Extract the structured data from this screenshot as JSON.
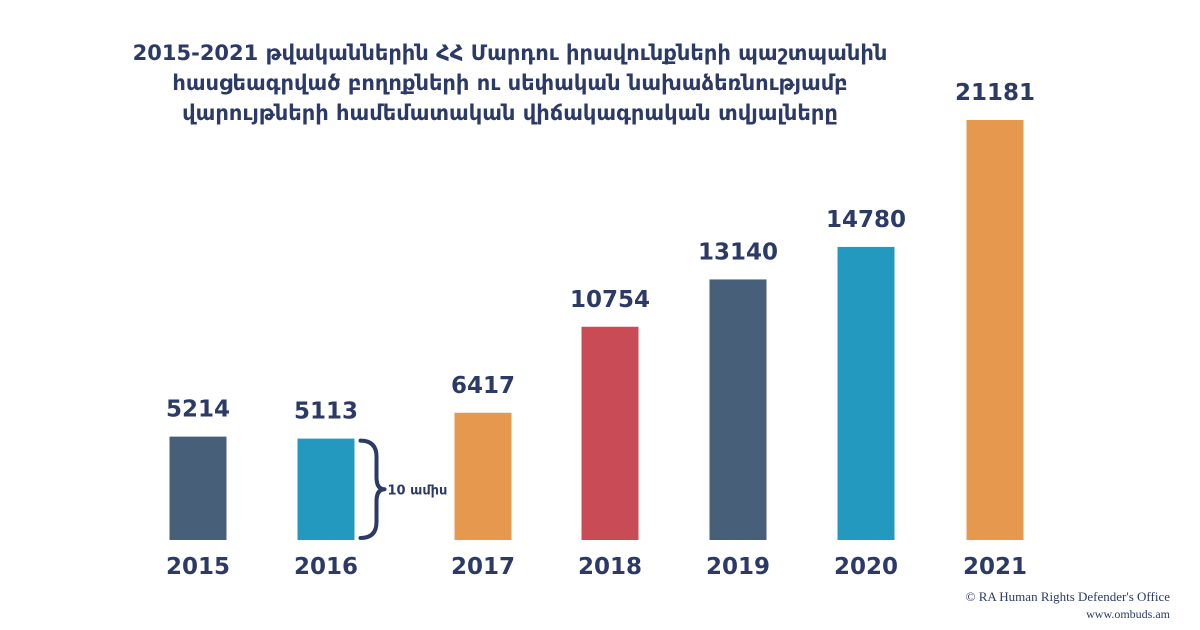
{
  "chart_data": {
    "type": "bar",
    "title_lines": [
      "2015-2021 թվականներին ՀՀ Մարդու իրավունքների պաշտպանին",
      "հասցեագրված բողոքների ու սեփական նախաձեռնությամբ",
      "վարույթների համեմատական վիճակագրական տվյալները"
    ],
    "categories": [
      "2015",
      "2016",
      "2017",
      "2018",
      "2019",
      "2020",
      "2021"
    ],
    "values": [
      5214,
      5113,
      6417,
      10754,
      13140,
      14780,
      21181
    ],
    "value_labels": [
      "5214",
      "5113",
      "6417",
      "10754",
      "13140",
      "14780",
      "21181"
    ],
    "bar_colors": [
      "#475f78",
      "#2399c0",
      "#e6984f",
      "#c84b55",
      "#475f78",
      "#2399c0",
      "#e6984f"
    ],
    "ylim": [
      0,
      21181
    ],
    "grid": false,
    "legend": "none",
    "annotation": {
      "category": "2016",
      "text": "10 ամիս",
      "shape": "curly-brace"
    }
  },
  "footer": {
    "credit_line1": "© RA Human Rights Defender's Office",
    "credit_line2": "www.ombuds.am"
  }
}
